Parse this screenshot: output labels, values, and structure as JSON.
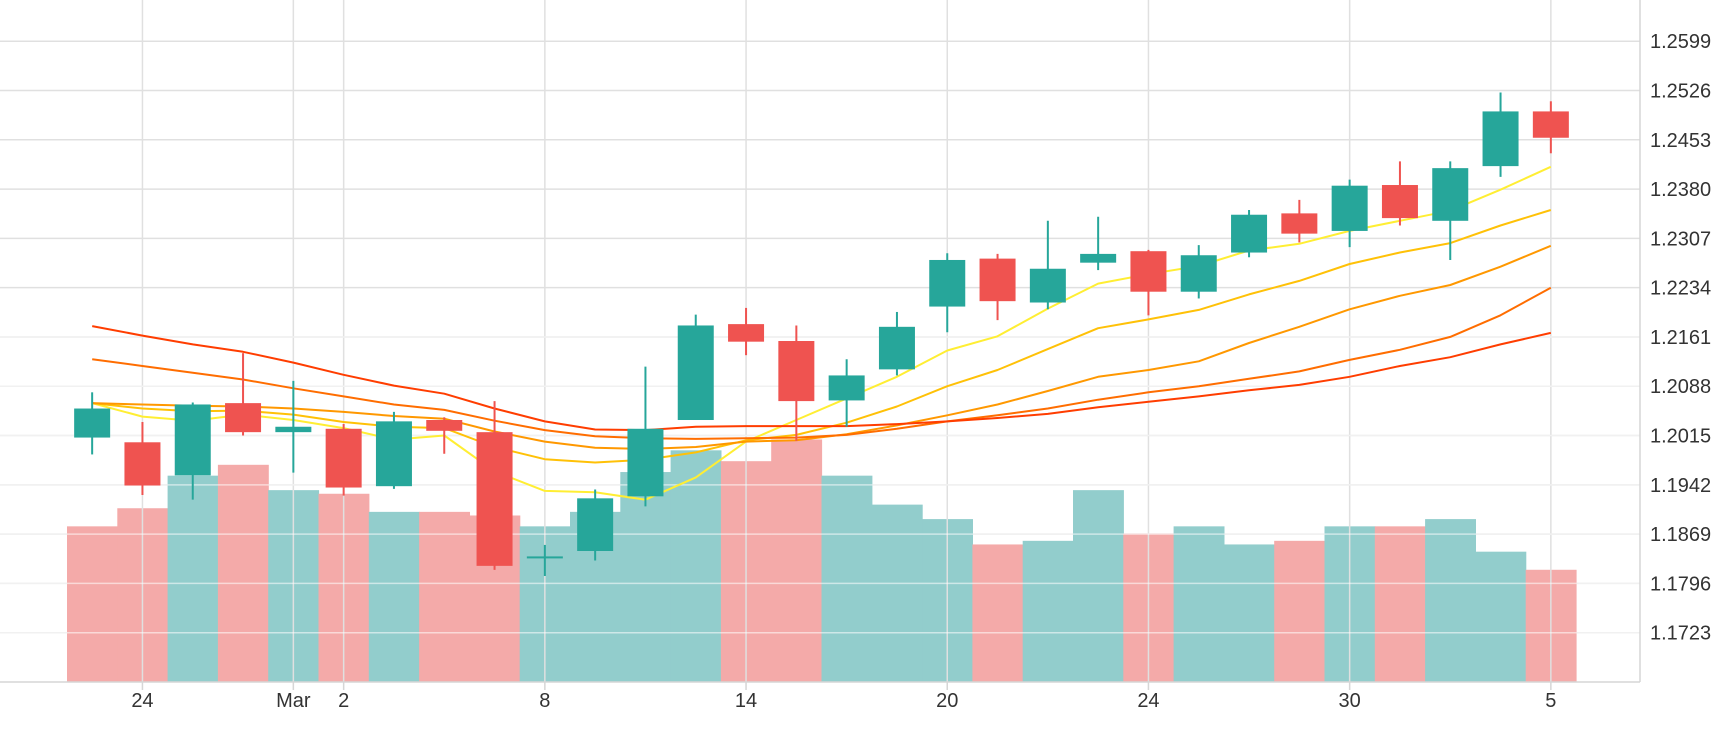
{
  "chart_data": {
    "type": "candlestick",
    "title": "",
    "xlabel": "",
    "ylabel": "",
    "ylim": [
      1.165,
      1.266
    ],
    "y_ticks": [
      "1.2599",
      "1.2526",
      "1.2453",
      "1.2380",
      "1.2307",
      "1.2234",
      "1.2161",
      "1.2088",
      "1.2015",
      "1.1942",
      "1.1869",
      "1.1796",
      "1.1723"
    ],
    "x_ticks": [
      {
        "label": "24",
        "index": 1.5
      },
      {
        "label": "Mar",
        "index": 4.5
      },
      {
        "label": "2",
        "index": 5.5
      },
      {
        "label": "8",
        "index": 9.5
      },
      {
        "label": "14",
        "index": 13.5
      },
      {
        "label": "20",
        "index": 17.5
      },
      {
        "label": "24",
        "index": 21.5
      },
      {
        "label": "30",
        "index": 25.5
      },
      {
        "label": "5",
        "index": 29.5
      }
    ],
    "grid": true,
    "colors": {
      "up": "#26a69a",
      "down": "#ef5350",
      "volume_up": "#92cdcc",
      "volume_down": "#f4aaa9",
      "grid": "#e0e0e0",
      "ma_series": [
        "#ffee33",
        "#ffc107",
        "#ff9800",
        "#ff6d00",
        "#ff3d00"
      ]
    },
    "candles": [
      {
        "open": 1.2012,
        "high": 1.2079,
        "low": 1.1987,
        "close": 1.2055
      },
      {
        "open": 1.2005,
        "high": 1.2035,
        "low": 1.1927,
        "close": 1.1941
      },
      {
        "open": 1.1956,
        "high": 1.2064,
        "low": 1.192,
        "close": 1.2061
      },
      {
        "open": 1.2063,
        "high": 1.2137,
        "low": 1.2015,
        "close": 1.202
      },
      {
        "open": 1.202,
        "high": 1.2096,
        "low": 1.196,
        "close": 1.2028
      },
      {
        "open": 1.2025,
        "high": 1.2032,
        "low": 1.1926,
        "close": 1.1938
      },
      {
        "open": 1.194,
        "high": 1.205,
        "low": 1.1936,
        "close": 1.2036
      },
      {
        "open": 1.2038,
        "high": 1.2042,
        "low": 1.1988,
        "close": 1.2022
      },
      {
        "open": 1.202,
        "high": 1.2066,
        "low": 1.1816,
        "close": 1.1822
      },
      {
        "open": 1.1834,
        "high": 1.1853,
        "low": 1.1807,
        "close": 1.1836
      },
      {
        "open": 1.1844,
        "high": 1.1935,
        "low": 1.183,
        "close": 1.1922
      },
      {
        "open": 1.1925,
        "high": 1.2117,
        "low": 1.191,
        "close": 1.2025
      },
      {
        "open": 1.2038,
        "high": 1.2194,
        "low": 1.2038,
        "close": 1.2178
      },
      {
        "open": 1.218,
        "high": 1.2204,
        "low": 1.2134,
        "close": 1.2154
      },
      {
        "open": 1.2155,
        "high": 1.2178,
        "low": 1.2007,
        "close": 1.2066
      },
      {
        "open": 1.2067,
        "high": 1.2128,
        "low": 1.2028,
        "close": 1.2104
      },
      {
        "open": 1.2113,
        "high": 1.2198,
        "low": 1.2104,
        "close": 1.2176
      },
      {
        "open": 1.2206,
        "high": 1.2285,
        "low": 1.2168,
        "close": 1.2275
      },
      {
        "open": 1.2277,
        "high": 1.2284,
        "low": 1.2186,
        "close": 1.2214
      },
      {
        "open": 1.2212,
        "high": 1.2333,
        "low": 1.2202,
        "close": 1.2262
      },
      {
        "open": 1.2271,
        "high": 1.2339,
        "low": 1.226,
        "close": 1.2284
      },
      {
        "open": 1.2288,
        "high": 1.229,
        "low": 1.2193,
        "close": 1.2228
      },
      {
        "open": 1.2228,
        "high": 1.2297,
        "low": 1.2218,
        "close": 1.2282
      },
      {
        "open": 1.2286,
        "high": 1.2349,
        "low": 1.2279,
        "close": 1.2342
      },
      {
        "open": 1.2344,
        "high": 1.2364,
        "low": 1.2301,
        "close": 1.2314
      },
      {
        "open": 1.2318,
        "high": 1.2394,
        "low": 1.2294,
        "close": 1.2385
      },
      {
        "open": 1.2386,
        "high": 1.2421,
        "low": 1.2326,
        "close": 1.2337
      },
      {
        "open": 1.2333,
        "high": 1.2421,
        "low": 1.2275,
        "close": 1.2411
      },
      {
        "open": 1.2414,
        "high": 1.2523,
        "low": 1.2398,
        "close": 1.2495
      },
      {
        "open": 1.2495,
        "high": 1.251,
        "low": 1.2433,
        "close": 1.2456
      }
    ],
    "volume": {
      "ylim": [
        0,
        1
      ],
      "bars": [
        {
          "value": 0.43,
          "direction": "down"
        },
        {
          "value": 0.48,
          "direction": "down"
        },
        {
          "value": 0.57,
          "direction": "up"
        },
        {
          "value": 0.6,
          "direction": "down"
        },
        {
          "value": 0.53,
          "direction": "up"
        },
        {
          "value": 0.52,
          "direction": "down"
        },
        {
          "value": 0.47,
          "direction": "up"
        },
        {
          "value": 0.47,
          "direction": "down"
        },
        {
          "value": 0.46,
          "direction": "down"
        },
        {
          "value": 0.43,
          "direction": "up"
        },
        {
          "value": 0.47,
          "direction": "up"
        },
        {
          "value": 0.58,
          "direction": "up"
        },
        {
          "value": 0.64,
          "direction": "up"
        },
        {
          "value": 0.61,
          "direction": "down"
        },
        {
          "value": 0.67,
          "direction": "down"
        },
        {
          "value": 0.57,
          "direction": "up"
        },
        {
          "value": 0.49,
          "direction": "up"
        },
        {
          "value": 0.45,
          "direction": "up"
        },
        {
          "value": 0.38,
          "direction": "down"
        },
        {
          "value": 0.39,
          "direction": "up"
        },
        {
          "value": 0.53,
          "direction": "up"
        },
        {
          "value": 0.41,
          "direction": "down"
        },
        {
          "value": 0.43,
          "direction": "up"
        },
        {
          "value": 0.38,
          "direction": "up"
        },
        {
          "value": 0.39,
          "direction": "down"
        },
        {
          "value": 0.43,
          "direction": "up"
        },
        {
          "value": 0.43,
          "direction": "down"
        },
        {
          "value": 0.45,
          "direction": "up"
        },
        {
          "value": 0.36,
          "direction": "up"
        },
        {
          "value": 0.31,
          "direction": "down"
        }
      ]
    },
    "series": [
      {
        "values": [
          1.2063,
          1.2043,
          1.2037,
          1.2046,
          1.2038,
          1.2026,
          1.2009,
          1.2015,
          1.1962,
          1.1933,
          1.1931,
          1.192,
          1.1953,
          1.2006,
          1.2038,
          1.207,
          1.2102,
          1.2141,
          1.2162,
          1.2203,
          1.224,
          1.2254,
          1.2266,
          1.2289,
          1.2299,
          1.2318,
          1.2333,
          1.2348,
          1.2379,
          1.2413
        ]
      },
      {
        "values": [
          1.2063,
          1.2055,
          1.2051,
          1.2052,
          1.2046,
          1.2035,
          1.2028,
          1.2026,
          1.1998,
          1.198,
          1.1975,
          1.1979,
          1.199,
          1.2008,
          1.2016,
          1.2034,
          1.2058,
          1.2088,
          1.2112,
          1.2143,
          1.2174,
          1.2187,
          1.2201,
          1.2224,
          1.2244,
          1.2269,
          1.2286,
          1.23,
          1.2326,
          1.2349
        ]
      },
      {
        "values": [
          1.2063,
          1.2061,
          1.2059,
          1.2058,
          1.2055,
          1.205,
          1.2044,
          1.204,
          1.2021,
          1.2006,
          1.1997,
          1.1995,
          1.1998,
          1.2006,
          1.2008,
          1.2017,
          1.203,
          1.2045,
          1.2061,
          1.2081,
          1.2102,
          1.2112,
          1.2125,
          1.2152,
          1.2176,
          1.2202,
          1.2222,
          1.2238,
          1.2265,
          1.2296
        ]
      },
      {
        "values": [
          1.2128,
          1.2118,
          1.2108,
          1.2098,
          1.2085,
          1.2073,
          1.2061,
          1.2053,
          1.2037,
          1.2023,
          1.2014,
          1.2011,
          1.201,
          1.2011,
          1.2012,
          1.2016,
          1.2025,
          1.2036,
          1.2045,
          1.2055,
          1.2068,
          1.2079,
          1.2088,
          1.2099,
          1.211,
          1.2127,
          1.2142,
          1.2161,
          1.2193,
          1.2234
        ]
      },
      {
        "values": [
          1.2177,
          1.2163,
          1.215,
          1.2139,
          1.2123,
          1.2105,
          1.2089,
          1.2077,
          1.2055,
          1.2036,
          1.2024,
          1.2023,
          1.2028,
          1.2029,
          1.2029,
          1.2029,
          1.2032,
          1.2036,
          1.2041,
          1.2047,
          1.2057,
          1.2065,
          1.2073,
          1.2082,
          1.209,
          1.2102,
          1.2118,
          1.2131,
          1.215,
          1.2167
        ]
      }
    ]
  }
}
